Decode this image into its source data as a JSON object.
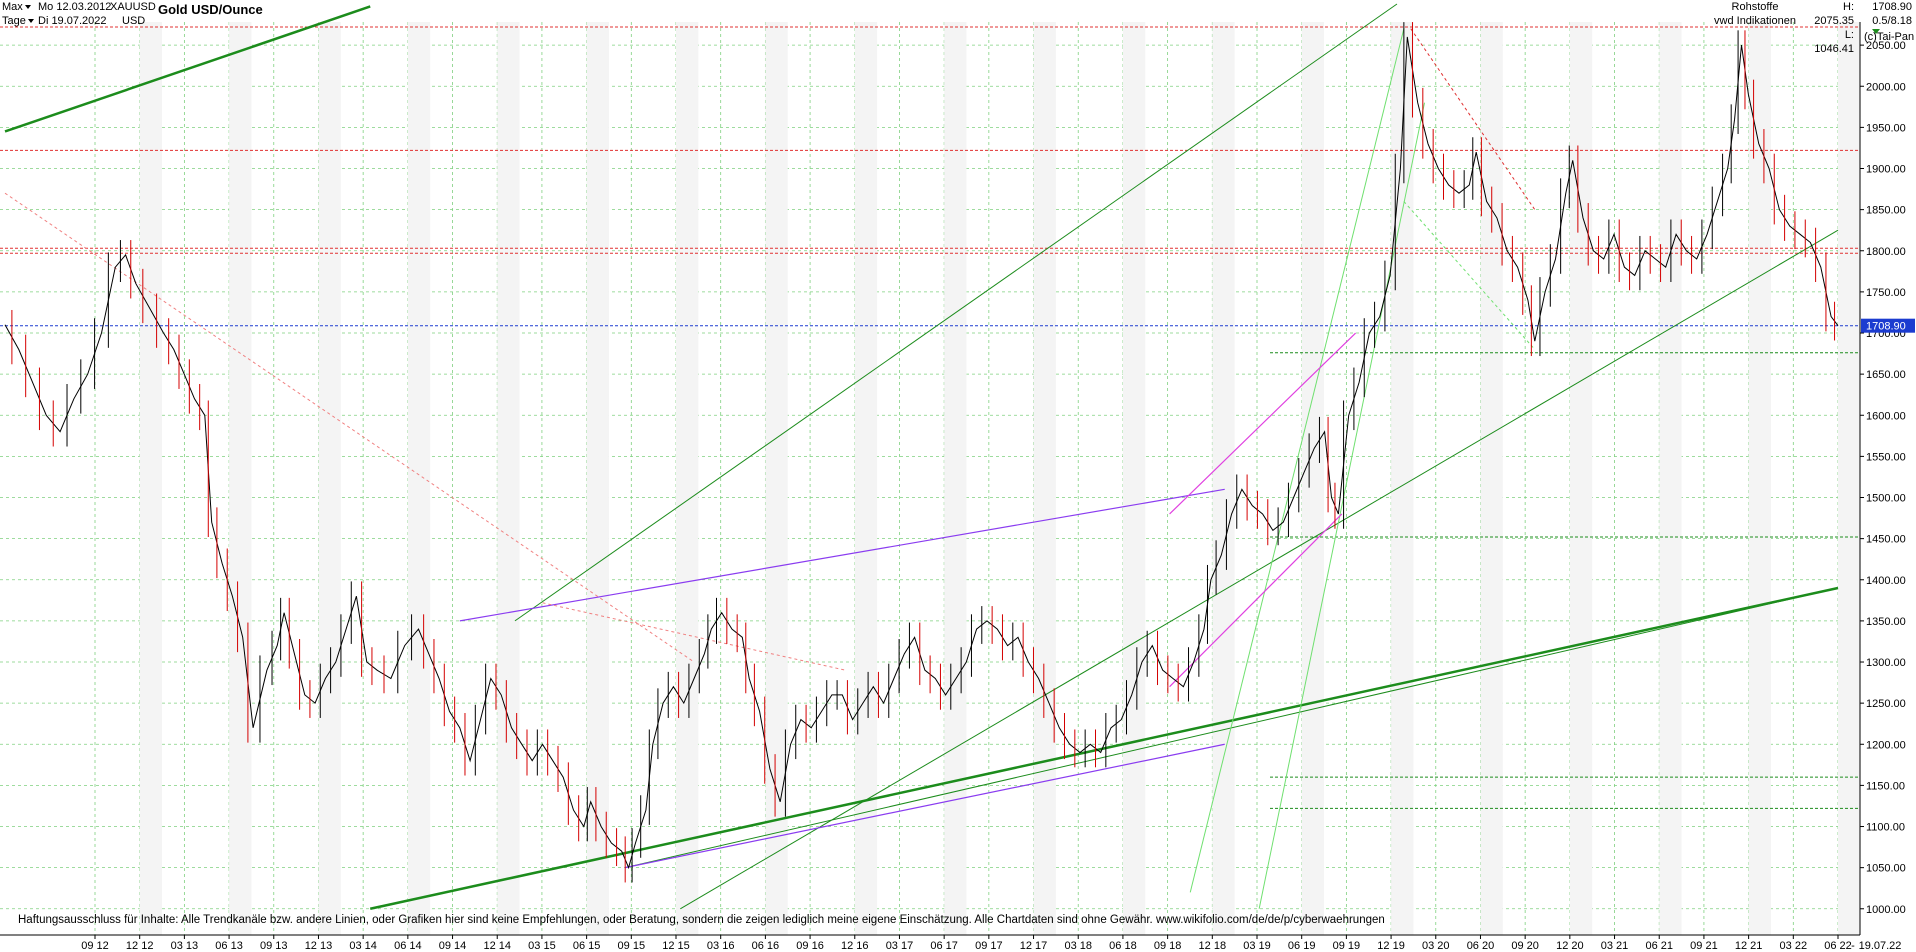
{
  "header": {
    "range_label": "Max",
    "interval_label": "Tage",
    "start_date": "Mo 12.03.2012",
    "end_date": "Di 19.07.2022",
    "symbol": "XAUUSD",
    "currency": "USD",
    "title": "Gold USD/Ounce"
  },
  "info": {
    "category": "Rohstoffe",
    "source": "vwd Indikationen",
    "high": "H: 2075.35",
    "low": "L: 1046.41",
    "last": "1708.90",
    "version": "0.5/8.18",
    "copyright": "(c)Tai-Pan"
  },
  "disclaimer": "Haftungsausschluss für Inhalte: Alle Trendkanäle bzw. andere Linien, oder Grafiken hier sind keine Empfehlungen, oder Beratung, sondern die zeigen lediglich meine eigene Einschätzung. Alle Chartdaten sind ohne Gewähr.  www.wikifolio.com/de/de/p/cyberwaehrungen",
  "colors": {
    "up_candle": "#000000",
    "down_candle": "#d40000",
    "grid": "#7fd07f",
    "trend_green": "#1c8c1c",
    "trend_purple": "#8a3cf0",
    "trend_magenta": "#e040e0",
    "resistance_red": "#e03030",
    "last_price": "#1c3cd0"
  },
  "chart_data": {
    "type": "line",
    "ylabel": "",
    "xlabel": "",
    "ylim": [
      990,
      2100
    ],
    "y_ticks": [
      "1000.00",
      "1050.00",
      "1100.00",
      "1150.00",
      "1200.00",
      "1250.00",
      "1300.00",
      "1350.00",
      "1400.00",
      "1450.00",
      "1500.00",
      "1550.00",
      "1600.00",
      "1650.00",
      "1700.00",
      "1750.00",
      "1800.00",
      "1850.00",
      "1900.00",
      "1950.00",
      "2000.00",
      "2050.00"
    ],
    "x_ticks": [
      "09 12",
      "12 12",
      "03 13",
      "06 13",
      "09 13",
      "12 13",
      "03 14",
      "06 14",
      "09 14",
      "12 14",
      "03 15",
      "06 15",
      "09 15",
      "12 15",
      "03 16",
      "06 16",
      "09 16",
      "12 16",
      "03 17",
      "06 17",
      "09 17",
      "12 17",
      "03 18",
      "06 18",
      "09 18",
      "12 18",
      "03 19",
      "06 19",
      "09 19",
      "12 19",
      "03 20",
      "06 20",
      "09 20",
      "12 20",
      "03 21",
      "06 21",
      "09 21",
      "12 21",
      "03 22",
      "06 22",
      "19.07.22"
    ],
    "x_tick_markers": [
      "-"
    ],
    "series": [
      {
        "values": [
          [
            0,
            1710
          ],
          [
            2,
            1680
          ],
          [
            4,
            1640
          ],
          [
            6,
            1600
          ],
          [
            8,
            1580
          ],
          [
            10,
            1620
          ],
          [
            12,
            1650
          ],
          [
            14,
            1700
          ],
          [
            16,
            1780
          ],
          [
            17.5,
            1795
          ],
          [
            19,
            1760
          ],
          [
            21,
            1730
          ],
          [
            23,
            1700
          ],
          [
            24.5,
            1680
          ],
          [
            26,
            1650
          ],
          [
            27.5,
            1620
          ],
          [
            29,
            1600
          ],
          [
            30,
            1470
          ],
          [
            31.5,
            1420
          ],
          [
            33,
            1380
          ],
          [
            34.5,
            1330
          ],
          [
            36,
            1220
          ],
          [
            38,
            1290
          ],
          [
            39.5,
            1320
          ],
          [
            40.5,
            1360
          ],
          [
            42,
            1310
          ],
          [
            43.5,
            1260
          ],
          [
            45,
            1250
          ],
          [
            46.5,
            1280
          ],
          [
            48,
            1300
          ],
          [
            49.5,
            1340
          ],
          [
            51,
            1380
          ],
          [
            52.5,
            1300
          ],
          [
            54,
            1290
          ],
          [
            56,
            1280
          ],
          [
            58,
            1320
          ],
          [
            60,
            1340
          ],
          [
            61.5,
            1310
          ],
          [
            63,
            1280
          ],
          [
            64.5,
            1240
          ],
          [
            66,
            1220
          ],
          [
            67.5,
            1180
          ],
          [
            69,
            1230
          ],
          [
            70.5,
            1280
          ],
          [
            72,
            1260
          ],
          [
            73.5,
            1220
          ],
          [
            75,
            1200
          ],
          [
            76.5,
            1180
          ],
          [
            78,
            1200
          ],
          [
            79.5,
            1180
          ],
          [
            81,
            1160
          ],
          [
            82.5,
            1120
          ],
          [
            84,
            1100
          ],
          [
            85,
            1130
          ],
          [
            86.5,
            1100
          ],
          [
            88,
            1080
          ],
          [
            89.5,
            1070
          ],
          [
            90.5,
            1050
          ],
          [
            91.5,
            1080
          ],
          [
            93,
            1120
          ],
          [
            94,
            1200
          ],
          [
            95.5,
            1250
          ],
          [
            97,
            1270
          ],
          [
            98.5,
            1250
          ],
          [
            100,
            1280
          ],
          [
            101.5,
            1310
          ],
          [
            102.5,
            1340
          ],
          [
            104,
            1360
          ],
          [
            105.5,
            1340
          ],
          [
            107,
            1330
          ],
          [
            108,
            1280
          ],
          [
            109.5,
            1240
          ],
          [
            111,
            1170
          ],
          [
            112.5,
            1130
          ],
          [
            114,
            1200
          ],
          [
            115.5,
            1230
          ],
          [
            117,
            1220
          ],
          [
            118.5,
            1240
          ],
          [
            120,
            1260
          ],
          [
            121.5,
            1260
          ],
          [
            123,
            1230
          ],
          [
            124.5,
            1250
          ],
          [
            126,
            1270
          ],
          [
            127.5,
            1250
          ],
          [
            129,
            1280
          ],
          [
            130.5,
            1310
          ],
          [
            132,
            1330
          ],
          [
            133.5,
            1290
          ],
          [
            135,
            1280
          ],
          [
            136.5,
            1260
          ],
          [
            138,
            1280
          ],
          [
            139.5,
            1300
          ],
          [
            141,
            1340
          ],
          [
            142.5,
            1350
          ],
          [
            144,
            1340
          ],
          [
            145.5,
            1320
          ],
          [
            147,
            1330
          ],
          [
            148.5,
            1300
          ],
          [
            150,
            1280
          ],
          [
            151.5,
            1250
          ],
          [
            153,
            1220
          ],
          [
            154.5,
            1200
          ],
          [
            156,
            1190
          ],
          [
            157.5,
            1200
          ],
          [
            159,
            1190
          ],
          [
            160.5,
            1220
          ],
          [
            162,
            1230
          ],
          [
            163.5,
            1260
          ],
          [
            165,
            1300
          ],
          [
            166.5,
            1320
          ],
          [
            168,
            1290
          ],
          [
            169.5,
            1280
          ],
          [
            171,
            1270
          ],
          [
            172.5,
            1300
          ],
          [
            174,
            1340
          ],
          [
            175,
            1400
          ],
          [
            176.5,
            1430
          ],
          [
            178,
            1480
          ],
          [
            179.5,
            1510
          ],
          [
            181,
            1490
          ],
          [
            182.5,
            1480
          ],
          [
            184,
            1460
          ],
          [
            185.5,
            1470
          ],
          [
            187,
            1500
          ],
          [
            188.5,
            1530
          ],
          [
            190,
            1560
          ],
          [
            191.5,
            1580
          ],
          [
            192.5,
            1500
          ],
          [
            193.5,
            1480
          ],
          [
            195,
            1600
          ],
          [
            196.5,
            1640
          ],
          [
            198,
            1700
          ],
          [
            199.5,
            1720
          ],
          [
            201,
            1770
          ],
          [
            202.5,
            1900
          ],
          [
            203.5,
            2060
          ],
          [
            205,
            1980
          ],
          [
            206.5,
            1930
          ],
          [
            208,
            1900
          ],
          [
            209.5,
            1880
          ],
          [
            211,
            1870
          ],
          [
            212.5,
            1880
          ],
          [
            213.5,
            1920
          ],
          [
            215,
            1860
          ],
          [
            216.5,
            1840
          ],
          [
            218,
            1800
          ],
          [
            219.5,
            1780
          ],
          [
            221,
            1740
          ],
          [
            222,
            1690
          ],
          [
            223.5,
            1750
          ],
          [
            225,
            1790
          ],
          [
            226.5,
            1870
          ],
          [
            227.5,
            1910
          ],
          [
            229,
            1840
          ],
          [
            230.5,
            1800
          ],
          [
            232,
            1790
          ],
          [
            233.5,
            1820
          ],
          [
            235,
            1780
          ],
          [
            236.5,
            1770
          ],
          [
            238,
            1800
          ],
          [
            239.5,
            1790
          ],
          [
            241,
            1780
          ],
          [
            242.5,
            1820
          ],
          [
            244,
            1800
          ],
          [
            245.5,
            1790
          ],
          [
            247,
            1820
          ],
          [
            248.5,
            1860
          ],
          [
            250,
            1900
          ],
          [
            251,
            1960
          ],
          [
            252,
            2050
          ],
          [
            253,
            1990
          ],
          [
            254.5,
            1930
          ],
          [
            256,
            1900
          ],
          [
            257.5,
            1850
          ],
          [
            259,
            1830
          ],
          [
            260.5,
            1820
          ],
          [
            262,
            1810
          ],
          [
            263.5,
            1780
          ],
          [
            265,
            1720
          ],
          [
            266,
            1708.9
          ]
        ]
      }
    ],
    "horizontal_levels": [
      {
        "value": 2072,
        "style": "dashed",
        "color": "resistance_red"
      },
      {
        "value": 1922,
        "style": "dashed",
        "color": "resistance_red"
      },
      {
        "value": 1803,
        "style": "dashed",
        "color": "resistance_red"
      },
      {
        "value": 1797,
        "style": "dashed",
        "color": "resistance_red"
      },
      {
        "value": 1708.9,
        "style": "dashed",
        "color": "last_price"
      },
      {
        "value": 1676,
        "style": "dashed",
        "color": "trend_green"
      },
      {
        "value": 1452,
        "style": "dashed",
        "color": "trend_green"
      },
      {
        "value": 1160,
        "style": "dashed",
        "color": "trend_green"
      },
      {
        "value": 1122,
        "style": "dashed",
        "color": "trend_green"
      }
    ],
    "grid": true,
    "legend": "none"
  }
}
